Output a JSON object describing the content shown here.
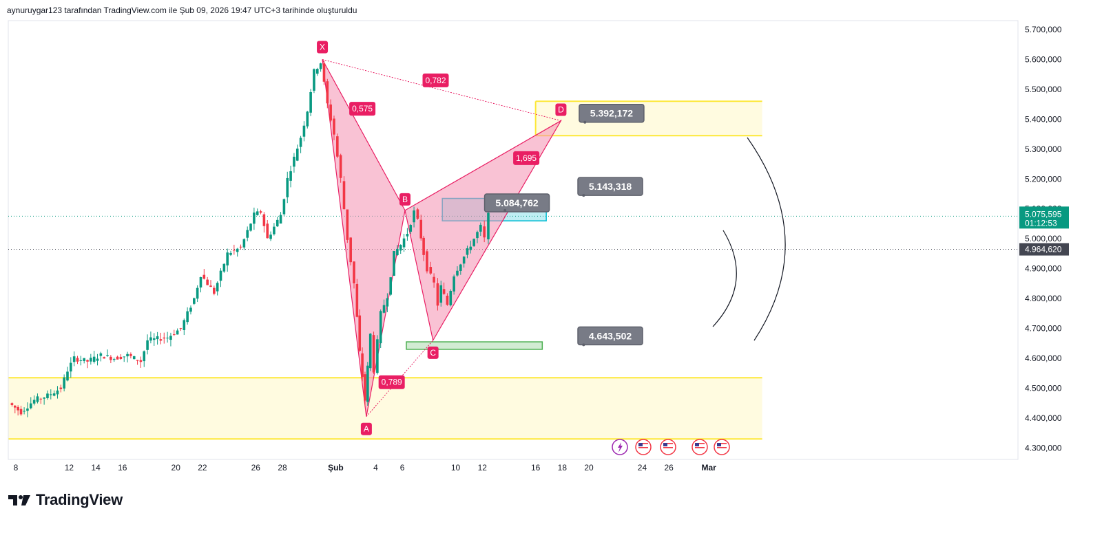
{
  "header": {
    "text": "aynuruygar123 tarafından TradingView.com ile Şub 09, 2026 19:47 UTC+3 tarihinde oluşturuldu"
  },
  "brand": {
    "name": "TradingView",
    "icon": "tradingview-logo-icon"
  },
  "colors": {
    "up": "#089981",
    "down": "#f23645",
    "pattern_fill": "#f8bbd0",
    "pattern_stroke": "#e91e63",
    "label_bg": "#e91e63",
    "zone_yellow": "#fde838",
    "zone_yellow_fill": "#fffbe0",
    "zone_blue": "#00bcd4",
    "zone_green": "#4caf50",
    "callout_bg": "#787b86",
    "last_price_bg": "#089981",
    "prev_price_bg": "#434651"
  },
  "chart_data": {
    "type": "candlestick",
    "title": "",
    "y_axis": {
      "range": [
        4280000,
        5730000
      ],
      "ticks": [
        "5.700,000",
        "5.600,000",
        "5.500,000",
        "5.400,000",
        "5.300,000",
        "5.200,000",
        "5.100,000",
        "5.000,000",
        "4.900,000",
        "4.800,000",
        "4.700,000",
        "4.600,000",
        "4.500,000",
        "4.400,000",
        "4.300,000"
      ],
      "tick_values": [
        5700000,
        5600000,
        5500000,
        5400000,
        5300000,
        5200000,
        5100000,
        5000000,
        4900000,
        4800000,
        4700000,
        4600000,
        4500000,
        4400000,
        4300000
      ]
    },
    "x_axis": {
      "ticks": [
        {
          "label": "8",
          "day": 8
        },
        {
          "label": "12",
          "day": 12
        },
        {
          "label": "14",
          "day": 14
        },
        {
          "label": "16",
          "day": 16
        },
        {
          "label": "20",
          "day": 20
        },
        {
          "label": "22",
          "day": 22
        },
        {
          "label": "26",
          "day": 26
        },
        {
          "label": "28",
          "day": 28
        },
        {
          "label": "Şub",
          "day": 32,
          "bold": true
        },
        {
          "label": "4",
          "day": 35
        },
        {
          "label": "6",
          "day": 37
        },
        {
          "label": "10",
          "day": 41
        },
        {
          "label": "12",
          "day": 43
        },
        {
          "label": "16",
          "day": 47
        },
        {
          "label": "18",
          "day": 49
        },
        {
          "label": "20",
          "day": 51
        },
        {
          "label": "24",
          "day": 55
        },
        {
          "label": "26",
          "day": 57
        },
        {
          "label": "Mar",
          "day": 60,
          "bold": true
        }
      ]
    },
    "price_path": [
      [
        7.6,
        4450000
      ],
      [
        8.5,
        4420000
      ],
      [
        9.5,
        4460000
      ],
      [
        10.5,
        4475000
      ],
      [
        11.5,
        4500000
      ],
      [
        12.0,
        4560000
      ],
      [
        12.5,
        4600000
      ],
      [
        13.5,
        4590000
      ],
      [
        14.5,
        4610000
      ],
      [
        15.5,
        4600000
      ],
      [
        16.5,
        4610000
      ],
      [
        17.5,
        4590000
      ],
      [
        18.0,
        4660000
      ],
      [
        19.5,
        4670000
      ],
      [
        20.5,
        4700000
      ],
      [
        21.5,
        4800000
      ],
      [
        22.0,
        4880000
      ],
      [
        22.5,
        4850000
      ],
      [
        23.0,
        4820000
      ],
      [
        24.0,
        4950000
      ],
      [
        25.0,
        4970000
      ],
      [
        26.0,
        5080000
      ],
      [
        26.5,
        5090000
      ],
      [
        27.0,
        5000000
      ],
      [
        28.0,
        5080000
      ],
      [
        28.5,
        5200000
      ],
      [
        29.5,
        5340000
      ],
      [
        30.0,
        5430000
      ],
      [
        30.5,
        5560000
      ],
      [
        31.0,
        5590000
      ],
      [
        31.5,
        5450000
      ],
      [
        32.0,
        5350000
      ],
      [
        32.5,
        5200000
      ],
      [
        33.0,
        5000000
      ],
      [
        33.5,
        4850000
      ],
      [
        33.9,
        4620000
      ],
      [
        34.3,
        4460000
      ],
      [
        34.7,
        4680000
      ],
      [
        35.0,
        4560000
      ],
      [
        35.5,
        4750000
      ],
      [
        36.0,
        4810000
      ],
      [
        36.5,
        4950000
      ],
      [
        37.0,
        4980000
      ],
      [
        37.5,
        5020000
      ],
      [
        38.0,
        5090000
      ],
      [
        38.3,
        5060000
      ],
      [
        38.7,
        4950000
      ],
      [
        39.0,
        4900000
      ],
      [
        39.5,
        4850000
      ],
      [
        39.8,
        4780000
      ],
      [
        40.0,
        4840000
      ],
      [
        40.5,
        4780000
      ],
      [
        41.0,
        4880000
      ],
      [
        41.5,
        4920000
      ],
      [
        42.0,
        4960000
      ],
      [
        42.5,
        5000000
      ],
      [
        43.0,
        5040000
      ],
      [
        43.3,
        5000000
      ],
      [
        43.6,
        5080000
      ]
    ],
    "patterns": {
      "points": [
        {
          "label": "X",
          "day": 31.0,
          "price": 5600000
        },
        {
          "label": "A",
          "day": 34.3,
          "price": 4405000
        },
        {
          "label": "B",
          "day": 37.2,
          "price": 5095000
        },
        {
          "label": "C",
          "day": 39.3,
          "price": 4660000
        },
        {
          "label": "D",
          "day": 48.9,
          "price": 5395000
        }
      ],
      "ratios": [
        {
          "text": "0,575",
          "day": 34.0,
          "price": 5435000
        },
        {
          "text": "0,782",
          "day": 39.5,
          "price": 5530000
        },
        {
          "text": "1,695",
          "day": 46.3,
          "price": 5270000
        },
        {
          "text": "0,789",
          "day": 36.2,
          "price": 4520000
        }
      ]
    },
    "zones": [
      {
        "name": "top-yellow",
        "from_day": 47.0,
        "to_day": 64.0,
        "top": 5460000,
        "bottom": 5345000,
        "color": "yellow"
      },
      {
        "name": "bottom-yellow",
        "from_day": 7.0,
        "to_day": 64.0,
        "top": 4535000,
        "bottom": 4330000,
        "color": "yellow"
      },
      {
        "name": "blue",
        "from_day": 40.0,
        "to_day": 47.8,
        "top": 5135000,
        "bottom": 5060000,
        "color": "blue"
      },
      {
        "name": "green",
        "from_day": 37.3,
        "to_day": 47.5,
        "top": 4655000,
        "bottom": 4630000,
        "color": "green"
      }
    ],
    "callouts": [
      {
        "text": "5.392,172",
        "box_day": 52.7,
        "box_price": 5420000,
        "pt_day": 50.7,
        "pt_price": 5390000
      },
      {
        "text": "5.084,762",
        "box_day": 45.6,
        "box_price": 5120000,
        "pt_day": 44.7,
        "pt_price": 5095000
      },
      {
        "text": "5.143,318",
        "box_day": 52.6,
        "box_price": 5175000,
        "pt_day": 50.6,
        "pt_price": 5145000
      },
      {
        "text": "4.643,502",
        "box_day": 52.6,
        "box_price": 4675000,
        "pt_day": 50.6,
        "pt_price": 4645000
      }
    ],
    "last_price": {
      "price": 5075595,
      "price_label": "5.075,595",
      "timer": "01:12:53"
    },
    "prev_price": {
      "price": 4964620,
      "label": "4.964,620"
    }
  }
}
